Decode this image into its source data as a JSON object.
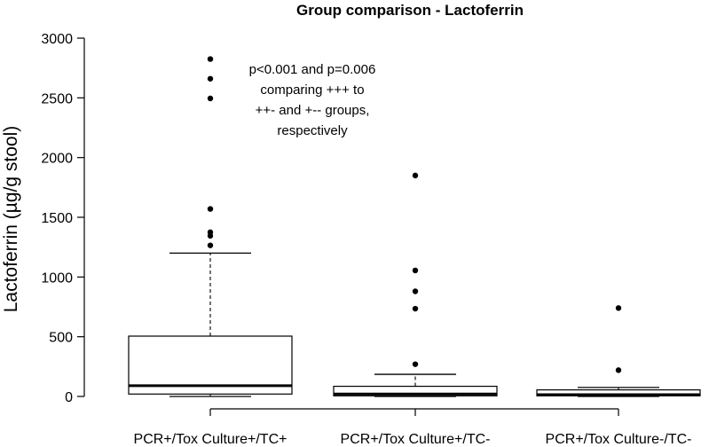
{
  "chart_data": {
    "type": "boxplot",
    "title": "Group comparison - Lactoferrin",
    "ylabel": "Lactoferrin (µg/g stool)",
    "xlabel": "",
    "ylim": [
      0,
      3000
    ],
    "yticks": [
      0,
      500,
      1000,
      1500,
      2000,
      2500,
      3000
    ],
    "grid": false,
    "annotation": [
      "p<0.001 and p=0.006",
      "comparing +++  to",
      "++- and +-- groups,",
      "respectively"
    ],
    "categories": [
      "PCR+/Tox Culture+/TC+",
      "PCR+/Tox Culture+/TC-",
      "PCR+/Tox Culture-/TC-"
    ],
    "boxes": [
      {
        "min": 0,
        "q1": 20,
        "median": 90,
        "q3": 505,
        "max": 1200,
        "outliers": [
          1265,
          1345,
          1375,
          1570,
          2495,
          2660,
          2825
        ]
      },
      {
        "min": 0,
        "q1": 5,
        "median": 20,
        "q3": 85,
        "max": 185,
        "outliers": [
          270,
          735,
          880,
          1055,
          1850
        ]
      },
      {
        "min": 0,
        "q1": 5,
        "median": 15,
        "q3": 55,
        "max": 75,
        "outliers": [
          220,
          740
        ]
      }
    ]
  }
}
